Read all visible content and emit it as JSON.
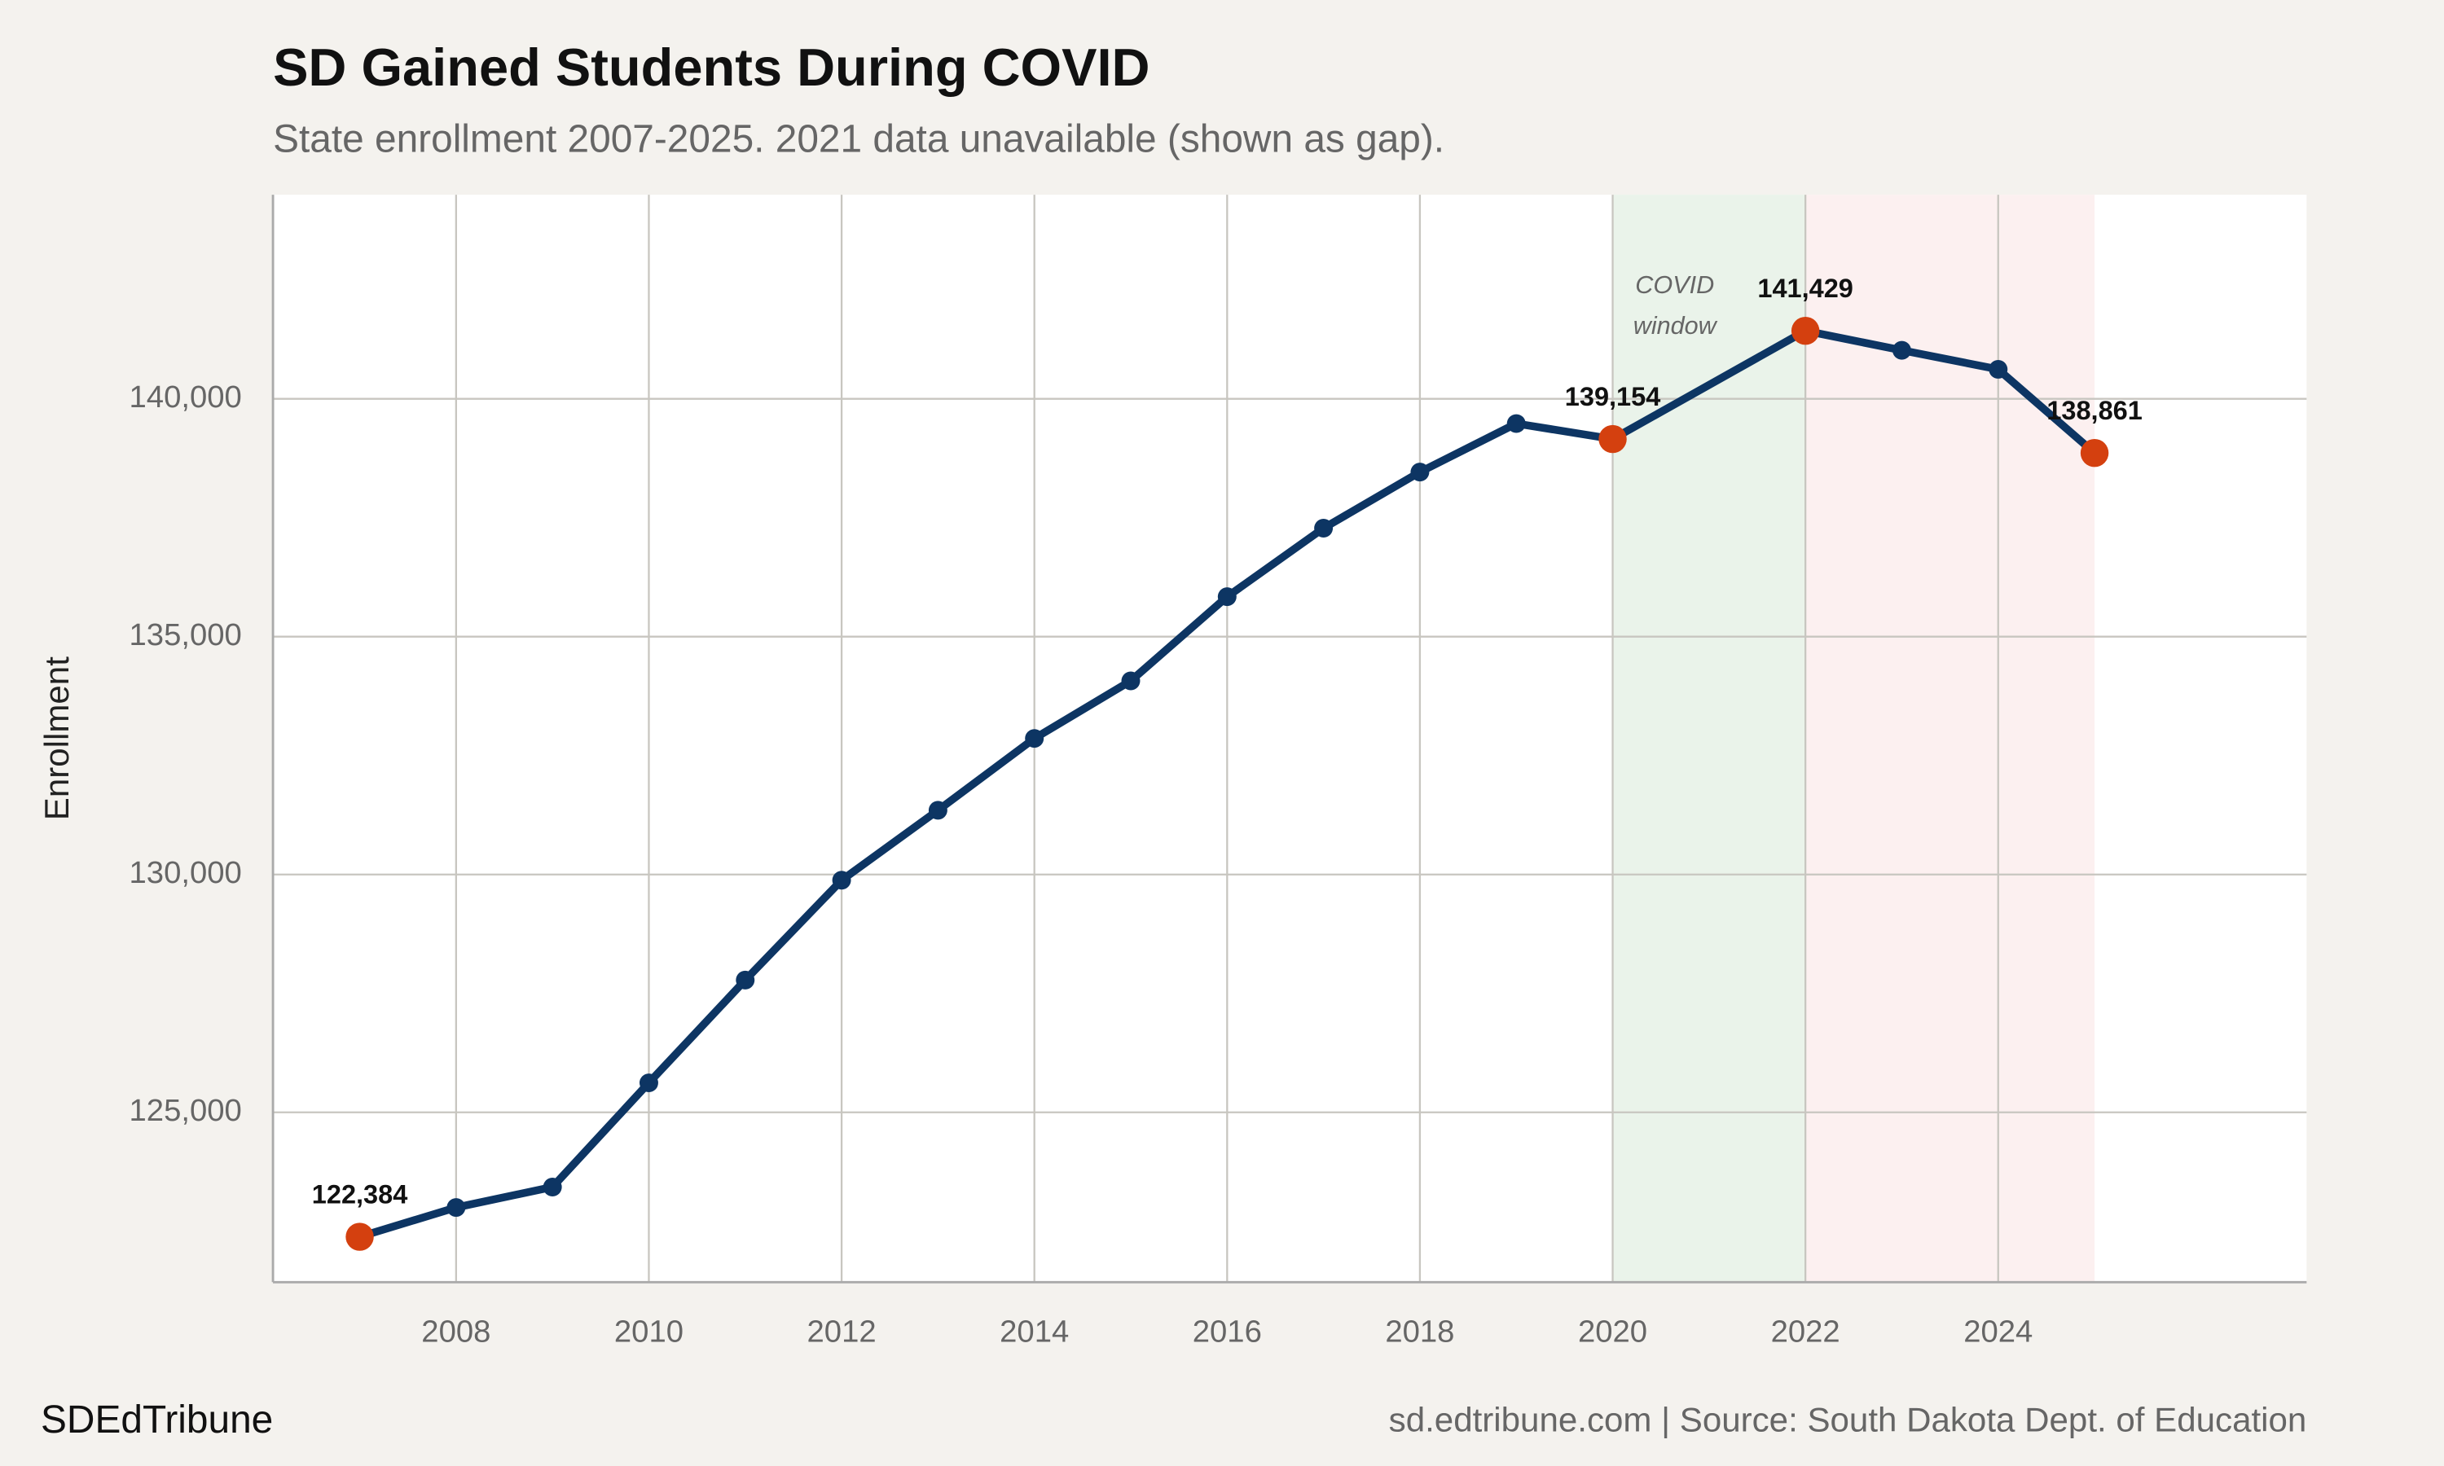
{
  "chart_data": {
    "type": "line",
    "title": "SD Gained Students During COVID",
    "subtitle": "State enrollment 2007-2025. 2021 data unavailable (shown as gap).",
    "y_label": "Enrollment",
    "brand": "SDEdTribune",
    "source": "sd.edtribune.com | Source: South Dakota Dept. of Education",
    "annotation": [
      "COVID",
      "window"
    ],
    "spans": [
      {
        "x": [
          2020,
          2022
        ],
        "color": "#eaf3ea"
      },
      {
        "x": [
          2022,
          2025
        ],
        "color": "#fcf0f0"
      }
    ],
    "x": [
      2007,
      2008,
      2009,
      2010,
      2011,
      2012,
      2013,
      2014,
      2015,
      2016,
      2017,
      2018,
      2019,
      2020,
      2022,
      2023,
      2024,
      2025
    ],
    "series": [
      {
        "name": "Enrollment",
        "color": "#0d3563",
        "highlight_color": "#d4400f",
        "values": [
          122384,
          123000,
          123430,
          125620,
          127780,
          129880,
          131350,
          132860,
          134070,
          135840,
          137280,
          138460,
          139480,
          139154,
          141429,
          141020,
          140620,
          138861
        ],
        "value_labels": [
          "122,384",
          null,
          null,
          null,
          null,
          null,
          null,
          null,
          null,
          null,
          null,
          null,
          null,
          "139,154",
          "141,429",
          null,
          null,
          "138,861"
        ]
      }
    ],
    "xlim": [
      2006.1,
      2027.2
    ],
    "ylim": [
      121430,
      144290
    ],
    "xticks": [
      2008,
      2010,
      2012,
      2014,
      2016,
      2018,
      2020,
      2022,
      2024
    ],
    "yticks": [
      {
        "value": 125000,
        "label": "125,000"
      },
      {
        "value": 130000,
        "label": "130,000"
      },
      {
        "value": 135000,
        "label": "135,000"
      },
      {
        "value": 140000,
        "label": "140,000"
      }
    ],
    "grid": true
  }
}
